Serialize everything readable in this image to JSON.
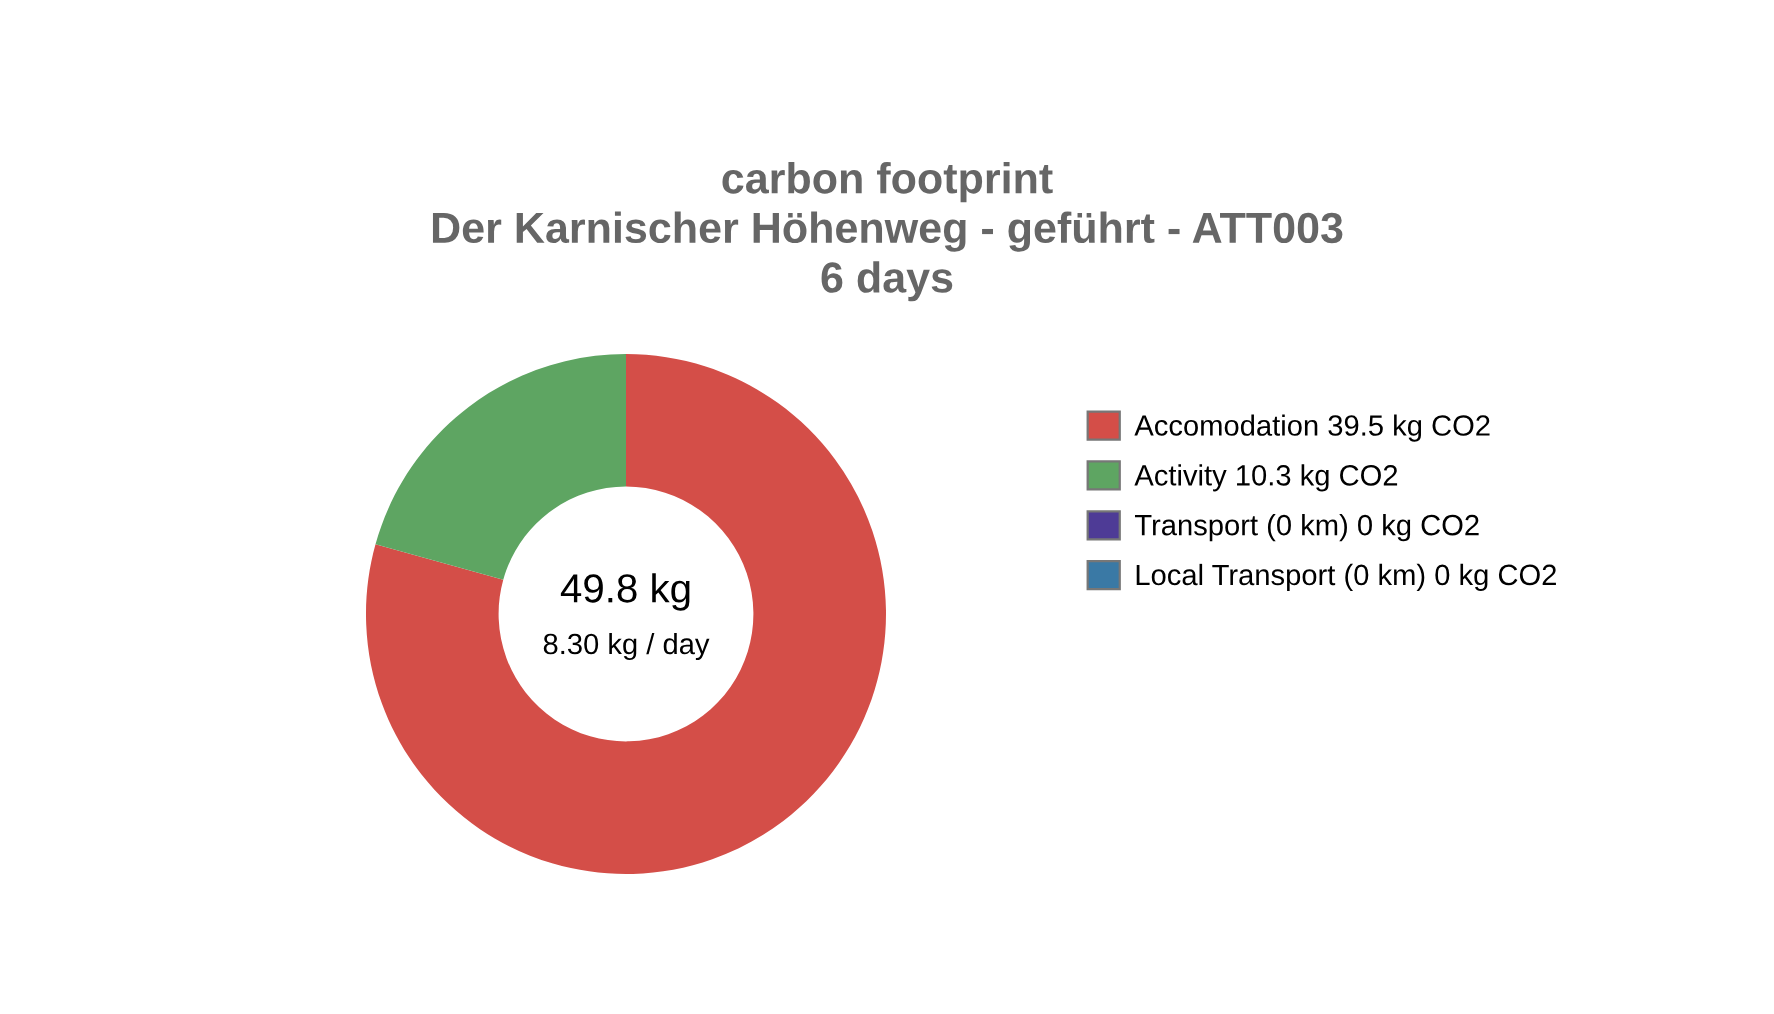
{
  "chart_data": {
    "type": "donut",
    "title": "carbon footprint\nDer Karnischer Höhenweg - geführt - ATT003\n6 days",
    "categories": [
      "Accomodation 39.5 kg CO2",
      "Activity 10.3 kg CO2",
      "Transport (0 km) 0 kg CO2",
      "Local Transport (0 km) 0 kg CO2"
    ],
    "values": [
      39.5,
      10.3,
      0,
      0
    ],
    "colors": [
      "#d44e48",
      "#5ea562",
      "#4e3b96",
      "#3a79a5"
    ],
    "annotations": [
      "49.8 kg",
      "8.30 kg / day"
    ],
    "legend": "right"
  }
}
